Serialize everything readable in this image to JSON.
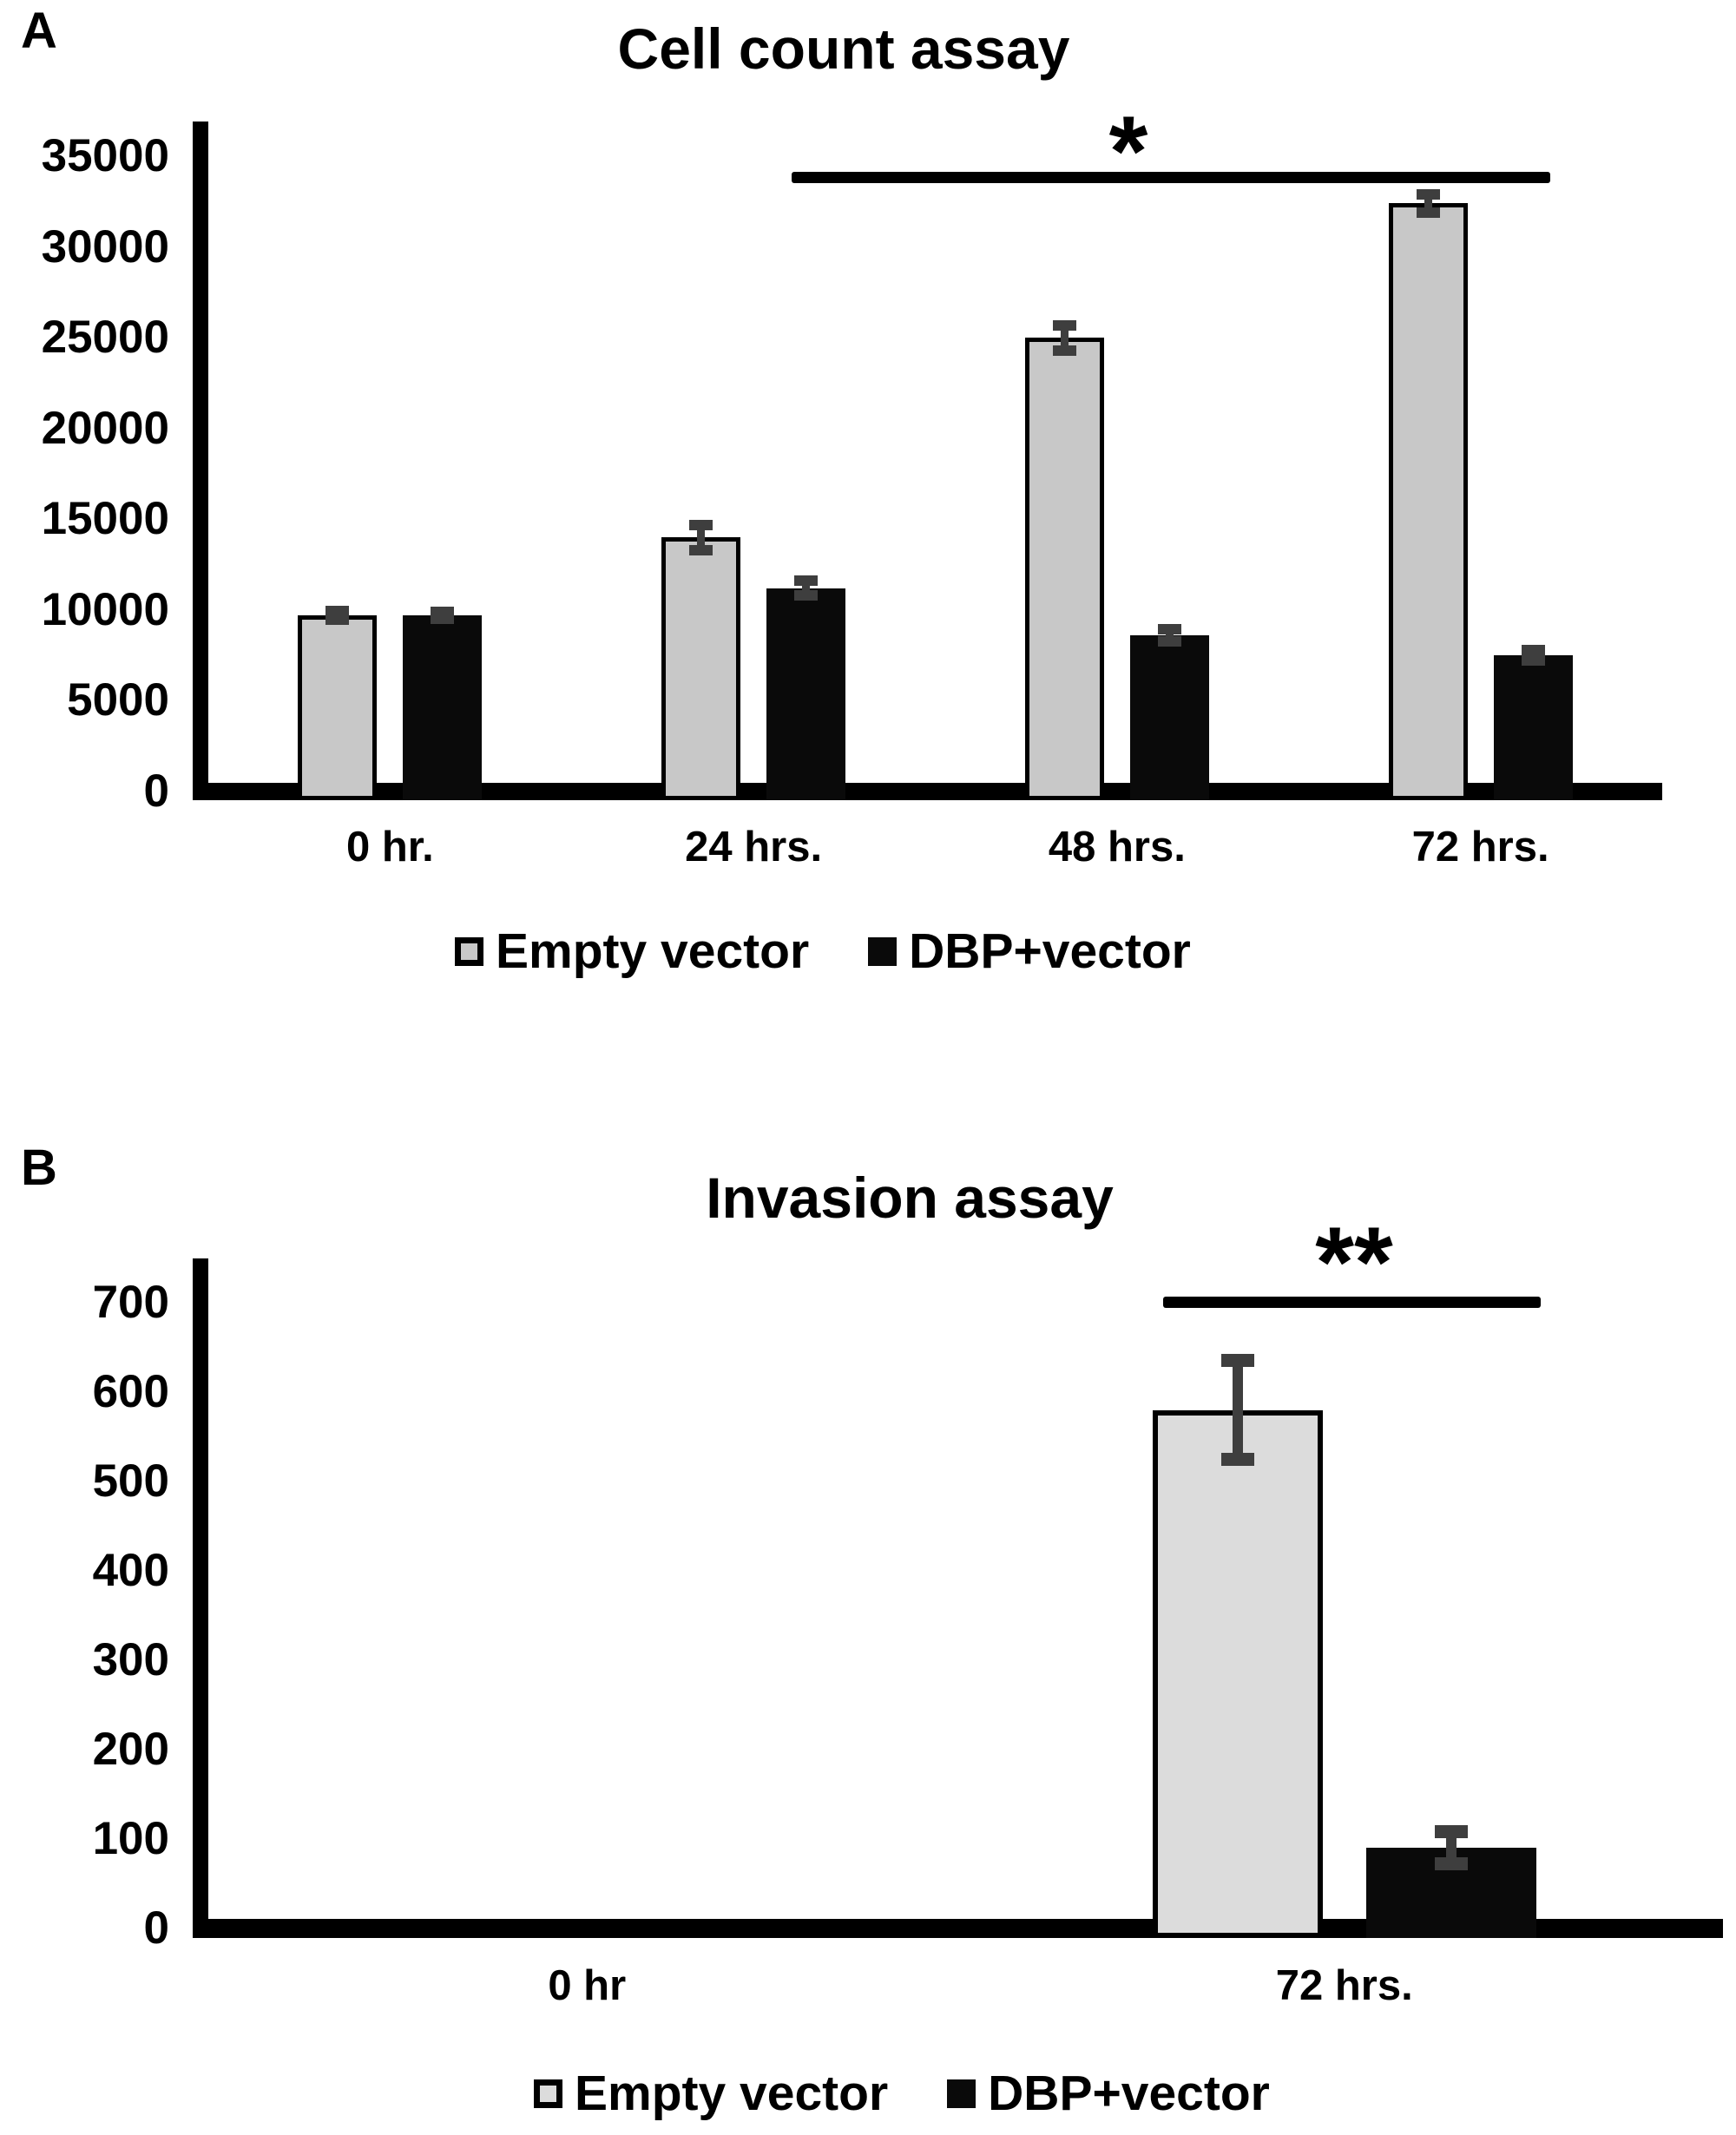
{
  "colors": {
    "axis": "#000000",
    "error_bar": "#3e3e3e",
    "empty_vector_a": "#c8c8c8",
    "empty_vector_b": "#dcdcdc",
    "dbp_vector": "#0a0a0a",
    "background": "#ffffff"
  },
  "legend": {
    "empty_vector_label": "Empty vector",
    "dbp_vector_label": "DBP+vector"
  },
  "chart_data": [
    {
      "type": "bar",
      "panel": "A",
      "title": "Cell count assay",
      "categories": [
        "0 hr.",
        "24 hrs.",
        "48 hrs.",
        "72 hrs."
      ],
      "series": [
        {
          "name": "Empty vector",
          "color": "#c8c8c8",
          "values": [
            9700,
            14000,
            25000,
            32400
          ],
          "errors": [
            250,
            700,
            700,
            500
          ]
        },
        {
          "name": "DBP+vector",
          "color": "#0a0a0a",
          "values": [
            9700,
            11200,
            8600,
            7500
          ],
          "errors": [
            200,
            400,
            350,
            300
          ]
        }
      ],
      "xlabel": "",
      "ylabel": "",
      "ylim": [
        0,
        35000
      ],
      "y_tick_step": 5000,
      "y_tick_labels": [
        "0",
        "5000",
        "10000",
        "15000",
        "20000",
        "25000",
        "30000",
        "35000"
      ],
      "grid": false,
      "legend_position": "bottom",
      "significance": {
        "label": "*",
        "span_categories": [
          "24 hrs.",
          "72 hrs."
        ]
      }
    },
    {
      "type": "bar",
      "panel": "B",
      "title": "Invasion assay",
      "categories": [
        "0 hr",
        "72 hrs."
      ],
      "series": [
        {
          "name": "Empty vector",
          "color": "#dcdcdc",
          "values": [
            0,
            580
          ],
          "errors": [
            0,
            55
          ]
        },
        {
          "name": "DBP+vector",
          "color": "#0a0a0a",
          "values": [
            0,
            90
          ],
          "errors": [
            0,
            18
          ]
        }
      ],
      "xlabel": "",
      "ylabel": "",
      "ylim": [
        0,
        700
      ],
      "y_tick_step": 100,
      "y_tick_labels": [
        "0",
        "100",
        "200",
        "300",
        "400",
        "500",
        "600",
        "700"
      ],
      "grid": false,
      "legend_position": "bottom",
      "significance": {
        "label": "**",
        "span_categories": [
          "72 hrs."
        ]
      }
    }
  ]
}
